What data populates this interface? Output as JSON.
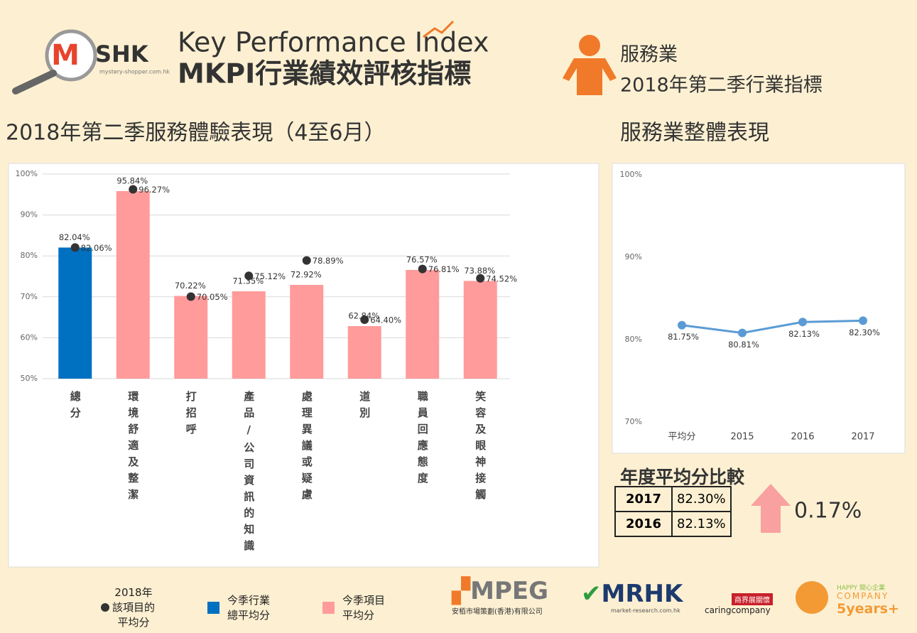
{
  "header": {
    "logo_mark": "M",
    "logo_text": "SHK",
    "logo_url": "mystery-shopper.com.hk",
    "title_en": "Key Performance Index",
    "title_zh": "MKPI行業績效評核指標",
    "sector": "服務業",
    "period": "2018年第二季行業指標"
  },
  "chart_data": [
    {
      "type": "bar",
      "title": "2018年第二季服務體驗表現（4至6月）",
      "categories": [
        "總分",
        "環境舒適及整潔",
        "打招呼",
        "產品/公司資訊的知識",
        "處理異議或疑慮",
        "道別",
        "職員回應態度",
        "笑容及眼神接觸"
      ],
      "series": [
        {
          "name": "2018年\n該項目的\n平均分",
          "type": "scatter",
          "color": "#333333",
          "values": [
            82.06,
            96.27,
            70.05,
            75.12,
            78.89,
            64.4,
            76.81,
            74.52
          ],
          "value_labels": [
            "82.06%",
            "96.27%",
            "70.05%",
            "75.12%",
            "78.89%",
            "64.40%",
            "76.81%",
            "74.52%"
          ]
        },
        {
          "name": "今季行業\n總平均分",
          "type": "bar",
          "color": "#0070c0",
          "values": [
            82.04,
            null,
            null,
            null,
            null,
            null,
            null,
            null
          ],
          "value_labels": [
            "82.04%",
            null,
            null,
            null,
            null,
            null,
            null,
            null
          ]
        },
        {
          "name": "今季項目\n平均分",
          "type": "bar",
          "color": "#ff9b9b",
          "values": [
            null,
            95.84,
            70.22,
            71.35,
            72.92,
            62.84,
            76.57,
            73.88
          ],
          "value_labels": [
            null,
            "95.84%",
            "70.22%",
            "71.35%",
            "72.92%",
            "62.84%",
            "76.57%",
            "73.88%"
          ]
        }
      ],
      "ylim": [
        50,
        100
      ],
      "yticks": [
        {
          "value": 50,
          "label": "50%"
        },
        {
          "value": 60,
          "label": "60%"
        },
        {
          "value": 70,
          "label": "70%"
        },
        {
          "value": 80,
          "label": "80%"
        },
        {
          "value": 90,
          "label": "90%"
        },
        {
          "value": 100,
          "label": "100%"
        }
      ],
      "grid": true
    },
    {
      "type": "line",
      "title": "服務業整體表現",
      "categories": [
        "平均分",
        "2015",
        "2016",
        "2017"
      ],
      "values": [
        81.75,
        80.81,
        82.13,
        82.3
      ],
      "value_labels": [
        "81.75%",
        "80.81%",
        "82.13%",
        "82.30%"
      ],
      "color": "#5b9bd5",
      "ylim": [
        70,
        100
      ],
      "yticks": [
        {
          "value": 70,
          "label": "70%"
        },
        {
          "value": 80,
          "label": "80%"
        },
        {
          "value": 90,
          "label": "90%"
        },
        {
          "value": 100,
          "label": "100%"
        }
      ],
      "grid": false
    }
  ],
  "table": {
    "title": "年度平均分比較",
    "rows": [
      [
        "2017",
        "82.30%"
      ],
      [
        "2016",
        "82.13%"
      ]
    ]
  },
  "change": "0.17%",
  "footer": {
    "mpeg": "MPEG",
    "mpeg_sub": "安栢市場策劃(香港)有限公司",
    "mrhk": "MRHK",
    "mrhk_sub": "market-research.com.hk",
    "caring": "caringcompany",
    "caring_badge": "商界展關懷",
    "happy": "HAPPY 開心企業",
    "happy_company": "COMPANY",
    "happy_years": "5years+"
  }
}
